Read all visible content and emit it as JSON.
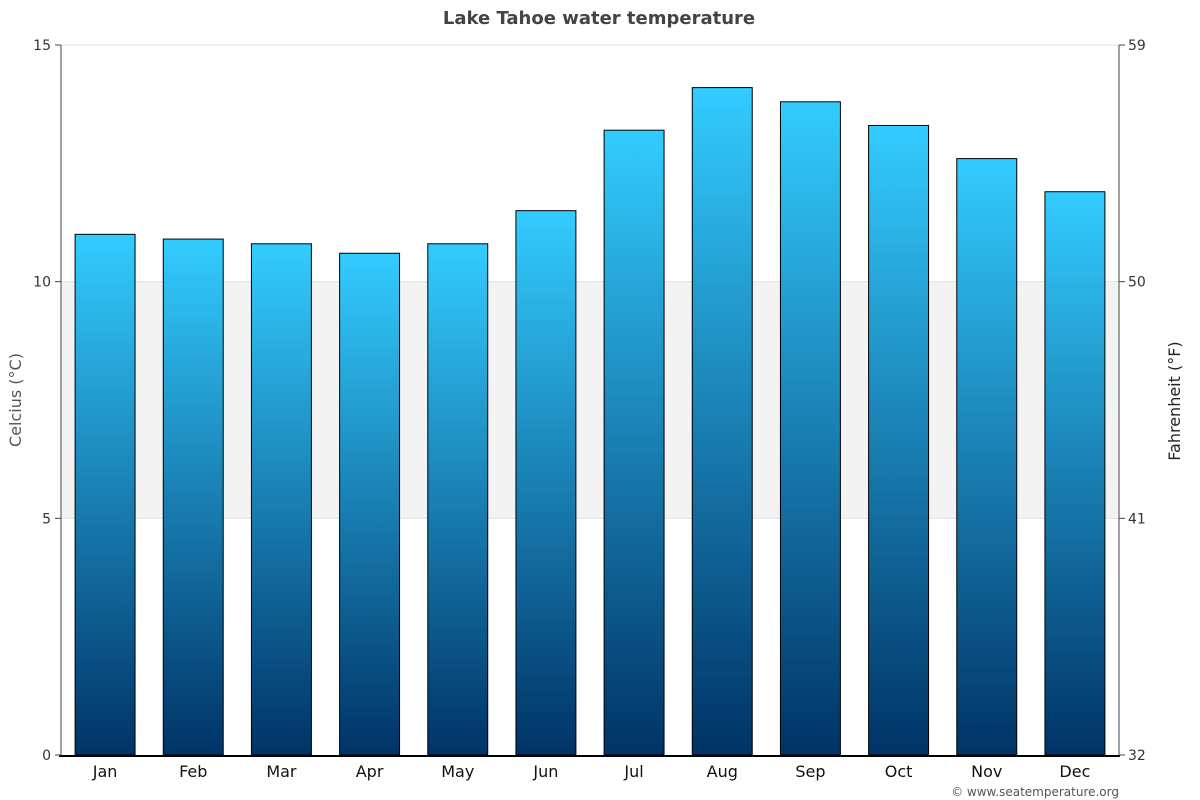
{
  "chart_data": {
    "type": "bar",
    "title": "Lake Tahoe water temperature",
    "categories": [
      "Jan",
      "Feb",
      "Mar",
      "Apr",
      "May",
      "Jun",
      "Jul",
      "Aug",
      "Sep",
      "Oct",
      "Nov",
      "Dec"
    ],
    "values": [
      11.0,
      10.9,
      10.8,
      10.6,
      10.8,
      11.5,
      13.2,
      14.1,
      13.8,
      13.3,
      12.6,
      11.9
    ],
    "ylabel": "Celcius (°C)",
    "ylabel_right": "Fahrenheit (°F)",
    "ylim": [
      0,
      15
    ],
    "yticks": [
      "0",
      "5",
      "10",
      "15"
    ],
    "yticks_right": [
      "32",
      "41",
      "50",
      "59"
    ],
    "grid": true,
    "bar_color_top": "#33ccff",
    "bar_color_bottom": "#003366"
  },
  "credit": "© www.seatemperature.org"
}
